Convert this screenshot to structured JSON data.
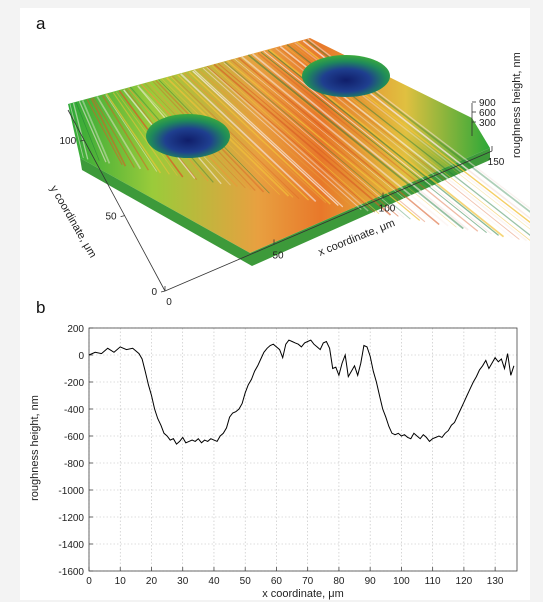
{
  "panel_a": {
    "letter": "a",
    "x_axis_label": "x coordinate, μm",
    "y_axis_label": "y coordinate, μm",
    "z_axis_label": "roughness height, nm",
    "x_ticks": [
      "0",
      "50",
      "100",
      "150"
    ],
    "y_ticks": [
      "0",
      "50",
      "100"
    ],
    "z_ticks": [
      "300",
      "600",
      "900"
    ]
  },
  "panel_b": {
    "letter": "b"
  },
  "chart_data": [
    {
      "type": "surface",
      "title": "",
      "xlabel": "x coordinate, μm",
      "ylabel": "y coordinate, μm",
      "zlabel": "roughness height, nm",
      "xlim": [
        0,
        150
      ],
      "ylim": [
        0,
        120
      ],
      "zlim": [
        0,
        900
      ],
      "x_ticks": [
        0,
        50,
        100,
        150
      ],
      "y_ticks": [
        0,
        50,
        100
      ],
      "z_ticks": [
        300,
        600,
        900
      ],
      "colors": {
        "low": "#1a2a8a",
        "mid_low": "#2ca838",
        "mid": "#e8d83a",
        "high": "#e8782a",
        "peak": "#f4e4e0"
      }
    },
    {
      "type": "line",
      "title": "",
      "xlabel": "x coordinate, μm",
      "ylabel": "roughness height, nm",
      "xlim": [
        0,
        137
      ],
      "ylim": [
        -1600,
        200
      ],
      "x_ticks": [
        0,
        10,
        20,
        30,
        40,
        50,
        60,
        70,
        80,
        90,
        100,
        110,
        120,
        130
      ],
      "y_ticks": [
        200,
        0,
        -200,
        -400,
        -600,
        -800,
        -1000,
        -1200,
        -1400,
        -1600
      ],
      "grid": true,
      "line_color": "#000000",
      "x": [
        0,
        2,
        4,
        6,
        8,
        10,
        12,
        14,
        16,
        17,
        18,
        19,
        20,
        21,
        22,
        23,
        24,
        25,
        26,
        27,
        28,
        29,
        30,
        31,
        32,
        33,
        34,
        35,
        36,
        37,
        38,
        39,
        40,
        41,
        42,
        43,
        44,
        45,
        46,
        47,
        48,
        49,
        50,
        51,
        52,
        53,
        54,
        55,
        56,
        57,
        58,
        59,
        60,
        61,
        62,
        63,
        64,
        65,
        66,
        67,
        68,
        69,
        70,
        71,
        72,
        73,
        74,
        75,
        76,
        77,
        78,
        79,
        80,
        81,
        82,
        83,
        84,
        85,
        86,
        87,
        88,
        89,
        90,
        91,
        92,
        93,
        94,
        95,
        96,
        97,
        98,
        99,
        100,
        101,
        102,
        103,
        104,
        105,
        106,
        107,
        108,
        109,
        110,
        111,
        112,
        113,
        114,
        115,
        116,
        117,
        118,
        119,
        120,
        121,
        122,
        123,
        124,
        125,
        126,
        127,
        128,
        129,
        130,
        131,
        132,
        133,
        134,
        135,
        136
      ],
      "y": [
        0,
        20,
        10,
        50,
        20,
        60,
        40,
        50,
        10,
        -30,
        -120,
        -220,
        -300,
        -400,
        -470,
        -520,
        -580,
        -600,
        -630,
        -620,
        -660,
        -640,
        -610,
        -650,
        -640,
        -630,
        -640,
        -620,
        -650,
        -630,
        -640,
        -620,
        -630,
        -640,
        -600,
        -580,
        -540,
        -460,
        -430,
        -420,
        -400,
        -360,
        -280,
        -220,
        -180,
        -120,
        -80,
        -30,
        20,
        50,
        70,
        80,
        60,
        40,
        -20,
        80,
        110,
        100,
        90,
        80,
        60,
        90,
        100,
        110,
        80,
        60,
        40,
        90,
        100,
        50,
        -100,
        -90,
        -150,
        -60,
        0,
        -160,
        -120,
        -80,
        -150,
        -60,
        70,
        60,
        -10,
        -120,
        -200,
        -300,
        -400,
        -460,
        -530,
        -580,
        -590,
        -580,
        -600,
        -590,
        -610,
        -620,
        -580,
        -600,
        -620,
        -590,
        -610,
        -640,
        -620,
        -610,
        -600,
        -610,
        -580,
        -560,
        -520,
        -500,
        -450,
        -400,
        -350,
        -300,
        -250,
        -200,
        -160,
        -110,
        -80,
        -40,
        -100,
        -60,
        -20,
        -50,
        -30,
        -100,
        10,
        -150,
        -80
      ]
    }
  ]
}
